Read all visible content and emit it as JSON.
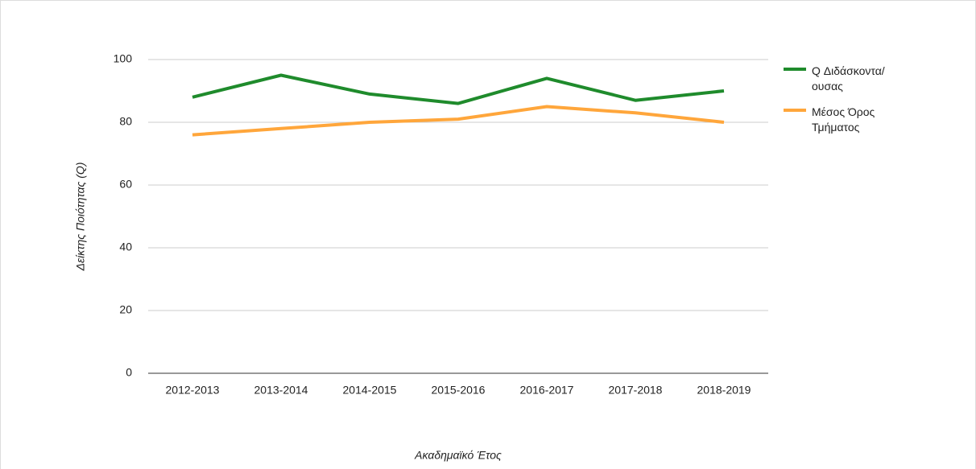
{
  "chart_data": {
    "type": "line",
    "x_label": "Ακαδημαϊκό Έτος",
    "y_label": "Δείκτης Ποιότητας (Q)",
    "categories": [
      "2012-2013",
      "2013-2014",
      "2014-2015",
      "2015-2016",
      "2016-2017",
      "2017-2018",
      "2018-2019"
    ],
    "series": [
      {
        "name": "Q Διδάσκοντα/ ουσας",
        "color": "#1f8b2c",
        "values": [
          88,
          95,
          89,
          86,
          94,
          87,
          90
        ]
      },
      {
        "name": "Μέσος Όρος Τμήματος",
        "color": "#ffa63b",
        "values": [
          76,
          78,
          80,
          81,
          85,
          83,
          80
        ]
      }
    ],
    "ylim": [
      0,
      100
    ],
    "yticks": [
      0,
      20,
      40,
      60,
      80,
      100
    ],
    "grid": true,
    "legend": "right"
  }
}
